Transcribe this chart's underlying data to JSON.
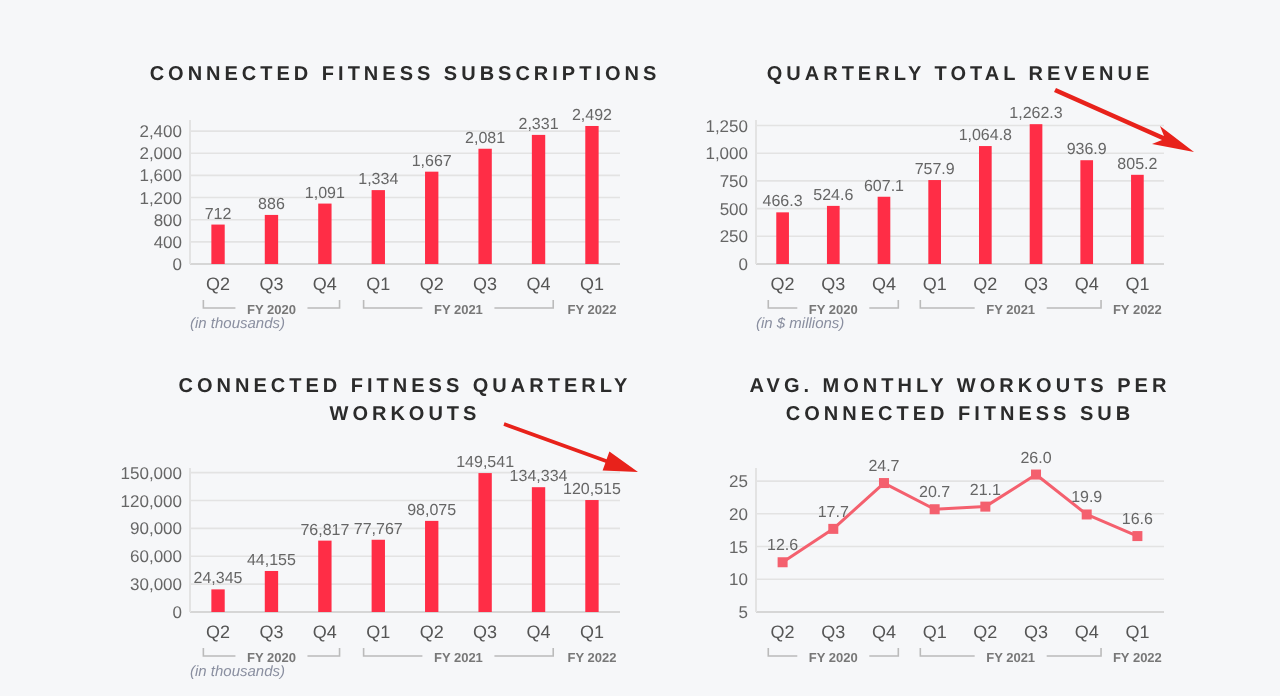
{
  "chart_data": [
    {
      "type": "bar",
      "title": "CONNECTED FITNESS SUBSCRIPTIONS",
      "categories": [
        "Q2",
        "Q3",
        "Q4",
        "Q1",
        "Q2",
        "Q3",
        "Q4",
        "Q1"
      ],
      "values": [
        712,
        886,
        1091,
        1334,
        1667,
        2081,
        2331,
        2492
      ],
      "value_labels": [
        "712",
        "886",
        "1,091",
        "1,334",
        "1,667",
        "2,081",
        "2,331",
        "2,492"
      ],
      "color": "#ff2d46",
      "ylim": [
        0,
        2600
      ],
      "yticks": [
        {
          "value": 0,
          "label": "0"
        },
        {
          "value": 400,
          "label": "400"
        },
        {
          "value": 800,
          "label": "800"
        },
        {
          "value": 1200,
          "label": "1,200"
        },
        {
          "value": 1600,
          "label": "1,600"
        },
        {
          "value": 2000,
          "label": "2,000"
        },
        {
          "value": 2400,
          "label": "2,400"
        }
      ],
      "grid": "y",
      "annotations": [
        "FY 2020",
        "FY 2021",
        "FY 2022",
        "(in thousands)"
      ]
    },
    {
      "type": "bar",
      "title": "QUARTERLY TOTAL REVENUE",
      "categories": [
        "Q2",
        "Q3",
        "Q4",
        "Q1",
        "Q2",
        "Q3",
        "Q4",
        "Q1"
      ],
      "values": [
        466.3,
        524.6,
        607.1,
        757.9,
        1064.8,
        1262.3,
        936.9,
        805.2
      ],
      "value_labels": [
        "466.3",
        "524.6",
        "607.1",
        "757.9",
        "1,064.8",
        "1,262.3",
        "936.9",
        "805.2"
      ],
      "color": "#ff2d46",
      "ylim": [
        0,
        1300
      ],
      "yticks": [
        {
          "value": 0,
          "label": "0"
        },
        {
          "value": 250,
          "label": "250"
        },
        {
          "value": 500,
          "label": "500"
        },
        {
          "value": 750,
          "label": "750"
        },
        {
          "value": 1000,
          "label": "1,000"
        },
        {
          "value": 1250,
          "label": "1,250"
        }
      ],
      "grid": "y",
      "annotations": [
        "FY 2020",
        "FY 2021",
        "FY 2022",
        "(in $ millions)"
      ]
    },
    {
      "type": "bar",
      "title": "CONNECTED FITNESS QUARTERLY WORKOUTS",
      "categories": [
        "Q2",
        "Q3",
        "Q4",
        "Q1",
        "Q2",
        "Q3",
        "Q4",
        "Q1"
      ],
      "values": [
        24345,
        44155,
        76817,
        77767,
        98075,
        149541,
        134334,
        120515
      ],
      "value_labels": [
        "24,345",
        "44,155",
        "76,817",
        "77,767",
        "98,075",
        "149,541",
        "134,334",
        "120,515"
      ],
      "color": "#ff2d46",
      "ylim": [
        0,
        155000
      ],
      "yticks": [
        {
          "value": 0,
          "label": "0"
        },
        {
          "value": 30000,
          "label": "30,000"
        },
        {
          "value": 60000,
          "label": "60,000"
        },
        {
          "value": 90000,
          "label": "90,000"
        },
        {
          "value": 120000,
          "label": "120,000"
        },
        {
          "value": 150000,
          "label": "150,000"
        }
      ],
      "grid": "y",
      "annotations": [
        "FY 2020",
        "FY 2021",
        "FY 2022",
        "(in thousands)"
      ]
    },
    {
      "type": "line",
      "title": "AVG. MONTHLY WORKOUTS PER CONNECTED FITNESS SUB",
      "categories": [
        "Q2",
        "Q3",
        "Q4",
        "Q1",
        "Q2",
        "Q3",
        "Q4",
        "Q1"
      ],
      "values": [
        12.6,
        17.7,
        24.7,
        20.7,
        21.1,
        26.0,
        19.9,
        16.6
      ],
      "value_labels": [
        "12.6",
        "17.7",
        "24.7",
        "20.7",
        "21.1",
        "26.0",
        "19.9",
        "16.6"
      ],
      "color": "#f4606e",
      "ylim": [
        5,
        27
      ],
      "yticks": [
        5,
        10,
        15,
        20,
        25
      ],
      "grid": "y",
      "marker": "square",
      "annotations": [
        "FY 2020",
        "FY 2021",
        "FY 2022"
      ]
    }
  ]
}
